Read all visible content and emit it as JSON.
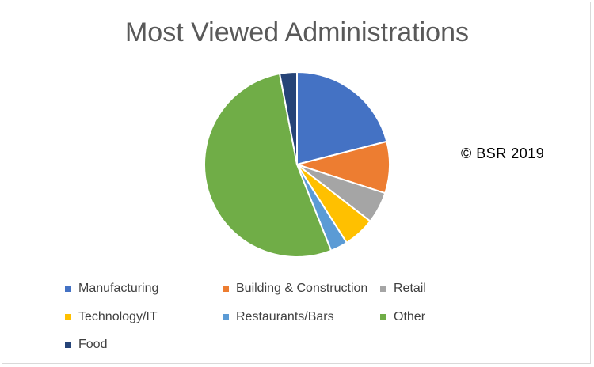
{
  "chart_data": {
    "type": "pie",
    "title": "Most Viewed Administrations",
    "annotation": "© BSR 2019",
    "legend_position": "bottom",
    "start_angle_deg": 0,
    "slices": [
      {
        "label": "Manufacturing",
        "value": 21.0,
        "color": "#4472C4"
      },
      {
        "label": "Building & Construction",
        "value": 9.0,
        "color": "#ED7D31"
      },
      {
        "label": "Retail",
        "value": 5.5,
        "color": "#A5A5A5"
      },
      {
        "label": "Technology/IT",
        "value": 5.5,
        "color": "#FFC000"
      },
      {
        "label": "Restaurants/Bars",
        "value": 3.0,
        "color": "#5B9BD5"
      },
      {
        "label": "Other",
        "value": 53.0,
        "color": "#70AD47"
      },
      {
        "label": "Food",
        "value": 3.0,
        "color": "#264478"
      }
    ]
  }
}
